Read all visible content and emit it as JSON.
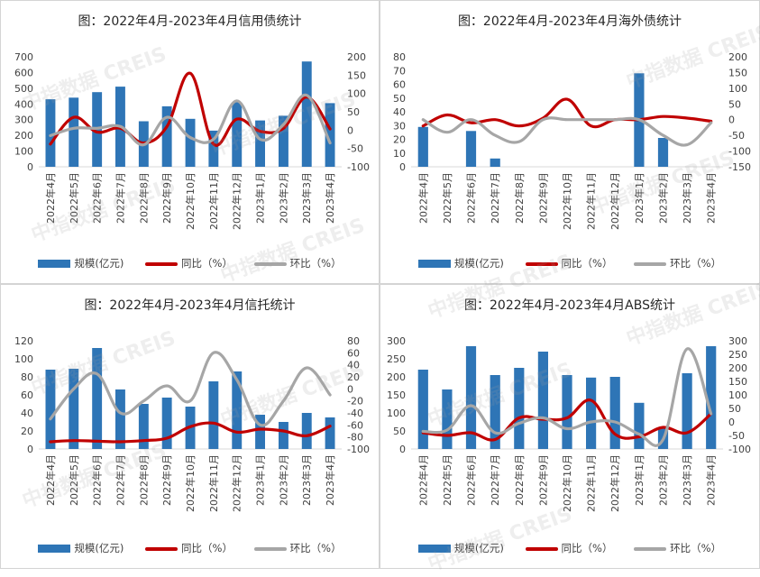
{
  "colors": {
    "bar": "#2e75b6",
    "yoy": "#c00000",
    "mom": "#a6a6a6"
  },
  "legend": {
    "bar": "规模(亿元)",
    "yoy": "同比（%）",
    "mom": "环比（%）"
  },
  "watermark": {
    "cn": "中指数据",
    "en": "CREIS"
  },
  "chart_data": [
    {
      "type": "bar",
      "title": "图：2022年4月-2023年4月信用债统计",
      "categories": [
        "2022年4月",
        "2022年5月",
        "2022年6月",
        "2022年7月",
        "2022年8月",
        "2022年9月",
        "2022年10月",
        "2022年11月",
        "2022年12月",
        "2023年1月",
        "2023年2月",
        "2023年3月",
        "2023年4月"
      ],
      "series": [
        {
          "name": "规模(亿元)",
          "axis": "left",
          "kind": "bar",
          "values": [
            430,
            440,
            475,
            510,
            290,
            385,
            305,
            230,
            410,
            295,
            325,
            670,
            405
          ]
        },
        {
          "name": "同比（%）",
          "axis": "right",
          "kind": "line",
          "values": [
            -38,
            35,
            -5,
            5,
            -35,
            10,
            155,
            -38,
            30,
            -3,
            5,
            90,
            3
          ]
        },
        {
          "name": "环比（%）",
          "axis": "right",
          "kind": "line",
          "values": [
            -15,
            5,
            5,
            10,
            -40,
            35,
            -20,
            -25,
            80,
            -25,
            15,
            95,
            -35
          ]
        }
      ],
      "ylim_left": [
        0,
        700
      ],
      "yticks_left": [
        0,
        100,
        200,
        300,
        400,
        500,
        600,
        700
      ],
      "ylim_right": [
        -100,
        200
      ],
      "yticks_right": [
        -100,
        -50,
        0,
        50,
        100,
        150,
        200
      ]
    },
    {
      "type": "bar",
      "title": "图：2022年4月-2023年4月海外债统计",
      "categories": [
        "2022年4月",
        "2022年5月",
        "2022年6月",
        "2022年7月",
        "2022年8月",
        "2022年9月",
        "2022年10月",
        "2022年11月",
        "2022年12月",
        "2023年1月",
        "2023年2月",
        "2023年3月",
        "2023年4月"
      ],
      "series": [
        {
          "name": "规模(亿元)",
          "axis": "left",
          "kind": "bar",
          "values": [
            29,
            0,
            26,
            6,
            0,
            0,
            0,
            0,
            0,
            68,
            21,
            0,
            0
          ]
        },
        {
          "name": "同比（%）",
          "axis": "right",
          "kind": "line",
          "values": [
            -20,
            15,
            -10,
            0,
            -20,
            5,
            65,
            -20,
            0,
            0,
            10,
            5,
            -5
          ]
        },
        {
          "name": "环比（%）",
          "axis": "right",
          "kind": "line",
          "values": [
            0,
            -40,
            0,
            -50,
            -70,
            0,
            0,
            0,
            0,
            0,
            -50,
            -80,
            -10
          ]
        }
      ],
      "ylim_left": [
        0,
        80
      ],
      "yticks_left": [
        0,
        10,
        20,
        30,
        40,
        50,
        60,
        70,
        80
      ],
      "ylim_right": [
        -150,
        200
      ],
      "yticks_right": [
        -150,
        -100,
        -50,
        0,
        50,
        100,
        150,
        200
      ]
    },
    {
      "type": "bar",
      "title": "图：2022年4月-2023年4月信托统计",
      "categories": [
        "2022年4月",
        "2022年5月",
        "2022年6月",
        "2022年7月",
        "2022年8月",
        "2022年9月",
        "2022年10月",
        "2022年11月",
        "2022年12月",
        "2023年1月",
        "2023年2月",
        "2023年3月",
        "2023年4月"
      ],
      "series": [
        {
          "name": "规模(亿元)",
          "axis": "left",
          "kind": "bar",
          "values": [
            88,
            89,
            112,
            66,
            50,
            57,
            47,
            75,
            86,
            38,
            30,
            40,
            35
          ]
        },
        {
          "name": "同比（%）",
          "axis": "right",
          "kind": "line",
          "values": [
            -88,
            -86,
            -87,
            -88,
            -86,
            -82,
            -63,
            -57,
            -72,
            -67,
            -70,
            -78,
            -62
          ]
        },
        {
          "name": "环比（%）",
          "axis": "right",
          "kind": "line",
          "values": [
            -50,
            0,
            25,
            -40,
            -20,
            5,
            -20,
            60,
            15,
            -60,
            -20,
            35,
            -10
          ]
        }
      ],
      "ylim_left": [
        0,
        120
      ],
      "yticks_left": [
        0,
        20,
        40,
        60,
        80,
        100,
        120
      ],
      "ylim_right": [
        -100,
        80
      ],
      "yticks_right": [
        -100,
        -80,
        -60,
        -40,
        -20,
        0,
        20,
        40,
        60,
        80
      ]
    },
    {
      "type": "bar",
      "title": "图：2022年4月-2023年4月ABS统计",
      "categories": [
        "2022年4月",
        "2022年5月",
        "2022年6月",
        "2022年7月",
        "2022年8月",
        "2022年9月",
        "2022年10月",
        "2022年11月",
        "2022年12月",
        "2023年1月",
        "2023年2月",
        "2023年3月",
        "2023年4月"
      ],
      "series": [
        {
          "name": "规模(亿元)",
          "axis": "left",
          "kind": "bar",
          "values": [
            220,
            165,
            285,
            205,
            225,
            270,
            205,
            198,
            200,
            128,
            60,
            210,
            285
          ]
        },
        {
          "name": "同比（%）",
          "axis": "right",
          "kind": "line",
          "values": [
            -40,
            -50,
            -40,
            -65,
            15,
            10,
            15,
            80,
            -45,
            -55,
            -20,
            -40,
            30
          ]
        },
        {
          "name": "环比（%）",
          "axis": "right",
          "kind": "line",
          "values": [
            -35,
            -30,
            60,
            -40,
            -5,
            15,
            -25,
            0,
            0,
            -45,
            -65,
            270,
            30
          ]
        }
      ],
      "ylim_left": [
        0,
        300
      ],
      "yticks_left": [
        0,
        50,
        100,
        150,
        200,
        250,
        300
      ],
      "ylim_right": [
        -100,
        300
      ],
      "yticks_right": [
        -100,
        -50,
        0,
        50,
        100,
        150,
        200,
        250,
        300
      ]
    }
  ]
}
